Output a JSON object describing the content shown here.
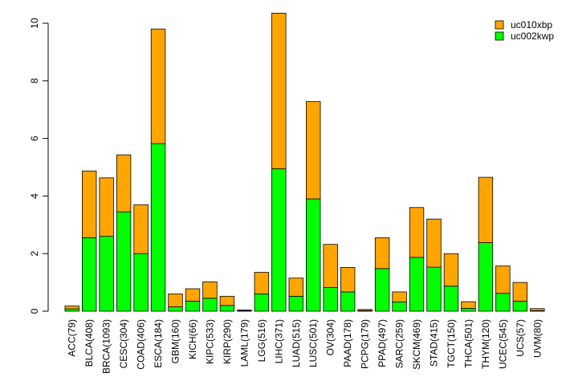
{
  "chart_data": {
    "type": "bar",
    "stacked": true,
    "categories": [
      "ACC(79)",
      "BLCA(408)",
      "BRCA(1093)",
      "CESC(304)",
      "COAD(406)",
      "ESCA(184)",
      "GBM(160)",
      "KICH(66)",
      "KIPC(533)",
      "KIRP(290)",
      "LAML(179)",
      "LGG(516)",
      "LIHC(371)",
      "LUAD(515)",
      "LUSC(501)",
      "OV(304)",
      "PAAD(178)",
      "PCPG(179)",
      "PPAD(497)",
      "SARC(259)",
      "SKCM(469)",
      "STAD(415)",
      "TGCT(150)",
      "THCA(501)",
      "THYM(120)",
      "UCEC(545)",
      "UCS(57)",
      "UVM(80)"
    ],
    "series": [
      {
        "name": "uc002kwp",
        "color": "#00ff00",
        "values": [
          0.08,
          2.55,
          2.6,
          3.45,
          2.0,
          5.82,
          0.15,
          0.35,
          0.45,
          0.2,
          0.02,
          0.6,
          4.95,
          0.52,
          3.9,
          0.82,
          0.67,
          0.02,
          1.48,
          0.32,
          1.87,
          1.53,
          0.87,
          0.1,
          2.38,
          0.62,
          0.35,
          0.02
        ]
      },
      {
        "name": "uc010xbp",
        "color": "#ffa500",
        "values": [
          0.1,
          2.32,
          2.03,
          1.98,
          1.7,
          3.98,
          0.45,
          0.43,
          0.57,
          0.32,
          0.02,
          0.75,
          5.4,
          0.63,
          3.38,
          1.5,
          0.85,
          0.04,
          1.07,
          0.35,
          1.73,
          1.67,
          1.13,
          0.23,
          2.27,
          0.95,
          0.65,
          0.07
        ]
      }
    ],
    "title": "",
    "xlabel": "",
    "ylabel": "",
    "ylim": [
      0,
      10.4
    ],
    "yticks": [
      "0",
      "2",
      "4",
      "6",
      "8",
      "10"
    ],
    "legend_position": "top-right",
    "legend_order": [
      "uc010xbp",
      "uc002kwp"
    ],
    "grid": false
  }
}
